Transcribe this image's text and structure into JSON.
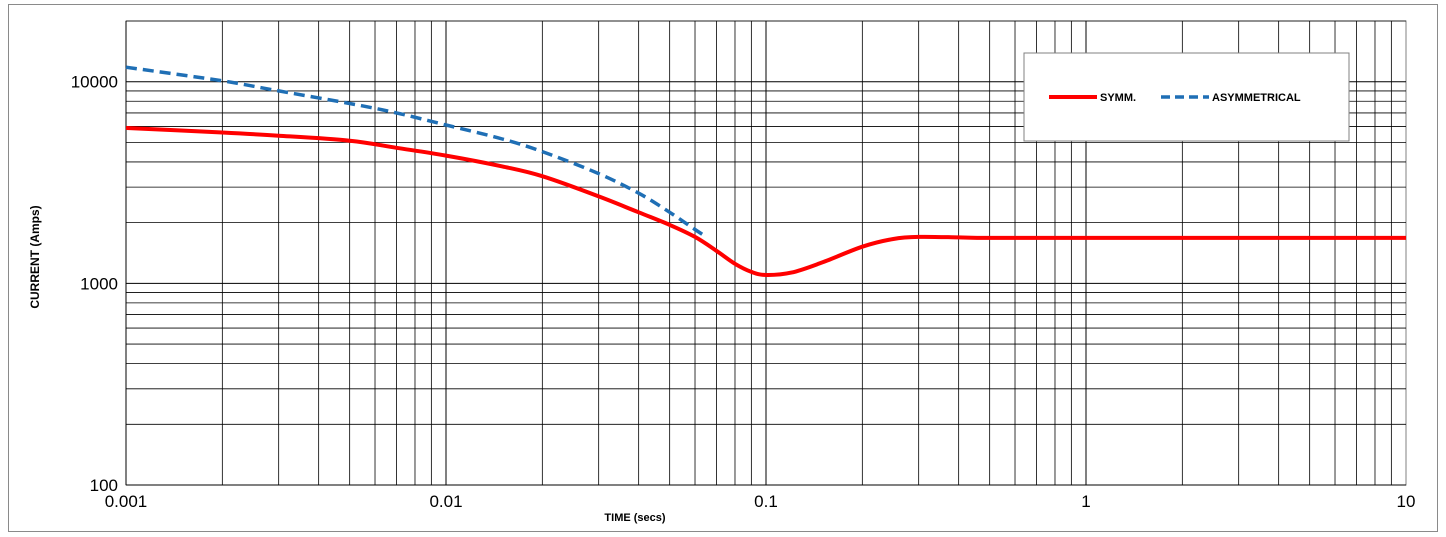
{
  "chart_data": {
    "type": "line",
    "title": "",
    "xlabel": "TIME (secs)",
    "ylabel": "CURRENT (Amps)",
    "xscale": "log",
    "yscale": "log",
    "xlim": [
      0.001,
      10
    ],
    "ylim": [
      100,
      20000
    ],
    "x_ticks": [
      {
        "value": 0.001,
        "label": "0.001"
      },
      {
        "value": 0.01,
        "label": "0.01"
      },
      {
        "value": 0.1,
        "label": "0.1"
      },
      {
        "value": 1,
        "label": "1"
      },
      {
        "value": 10,
        "label": "10"
      }
    ],
    "y_ticks": [
      {
        "value": 100,
        "label": "100"
      },
      {
        "value": 1000,
        "label": "1000"
      },
      {
        "value": 10000,
        "label": "10000"
      }
    ],
    "grid": true,
    "legend": "top-right",
    "series": [
      {
        "name": "SYMM.",
        "color": "#ff0000",
        "style": "solid",
        "x": [
          0.001,
          0.002,
          0.003,
          0.005,
          0.007,
          0.01,
          0.015,
          0.02,
          0.03,
          0.04,
          0.05,
          0.06,
          0.07,
          0.08,
          0.09,
          0.1,
          0.12,
          0.15,
          0.2,
          0.25,
          0.3,
          0.4,
          0.5,
          1,
          2,
          5,
          10
        ],
        "y": [
          5900,
          5600,
          5400,
          5100,
          4700,
          4300,
          3800,
          3400,
          2700,
          2250,
          1950,
          1700,
          1450,
          1250,
          1140,
          1100,
          1130,
          1270,
          1520,
          1660,
          1700,
          1690,
          1680,
          1680,
          1680,
          1680,
          1680
        ]
      },
      {
        "name": "ASYMMETRICAL",
        "color": "#1f6fb5",
        "style": "dashed",
        "x": [
          0.001,
          0.002,
          0.003,
          0.005,
          0.007,
          0.01,
          0.015,
          0.02,
          0.03,
          0.04,
          0.05,
          0.06,
          0.065
        ],
        "y": [
          11800,
          10100,
          9000,
          7800,
          7000,
          6100,
          5200,
          4500,
          3500,
          2800,
          2250,
          1850,
          1700
        ]
      }
    ]
  }
}
